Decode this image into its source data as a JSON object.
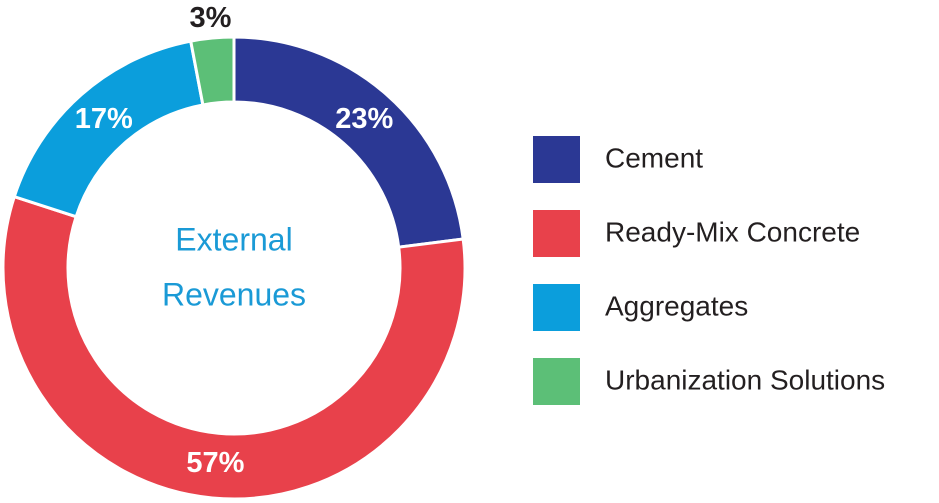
{
  "chart_data": {
    "type": "donut",
    "center_label": [
      "External",
      "Revenues"
    ],
    "categories": [
      "Cement",
      "Ready-Mix Concrete",
      "Aggregates",
      "Urbanization Solutions"
    ],
    "values": [
      23,
      57,
      17,
      3
    ],
    "value_labels": [
      "23%",
      "57%",
      "17%",
      "3%"
    ],
    "colors": [
      "#2b3894",
      "#e8414b",
      "#0b9edc",
      "#5cbf77"
    ],
    "legend": "right"
  }
}
